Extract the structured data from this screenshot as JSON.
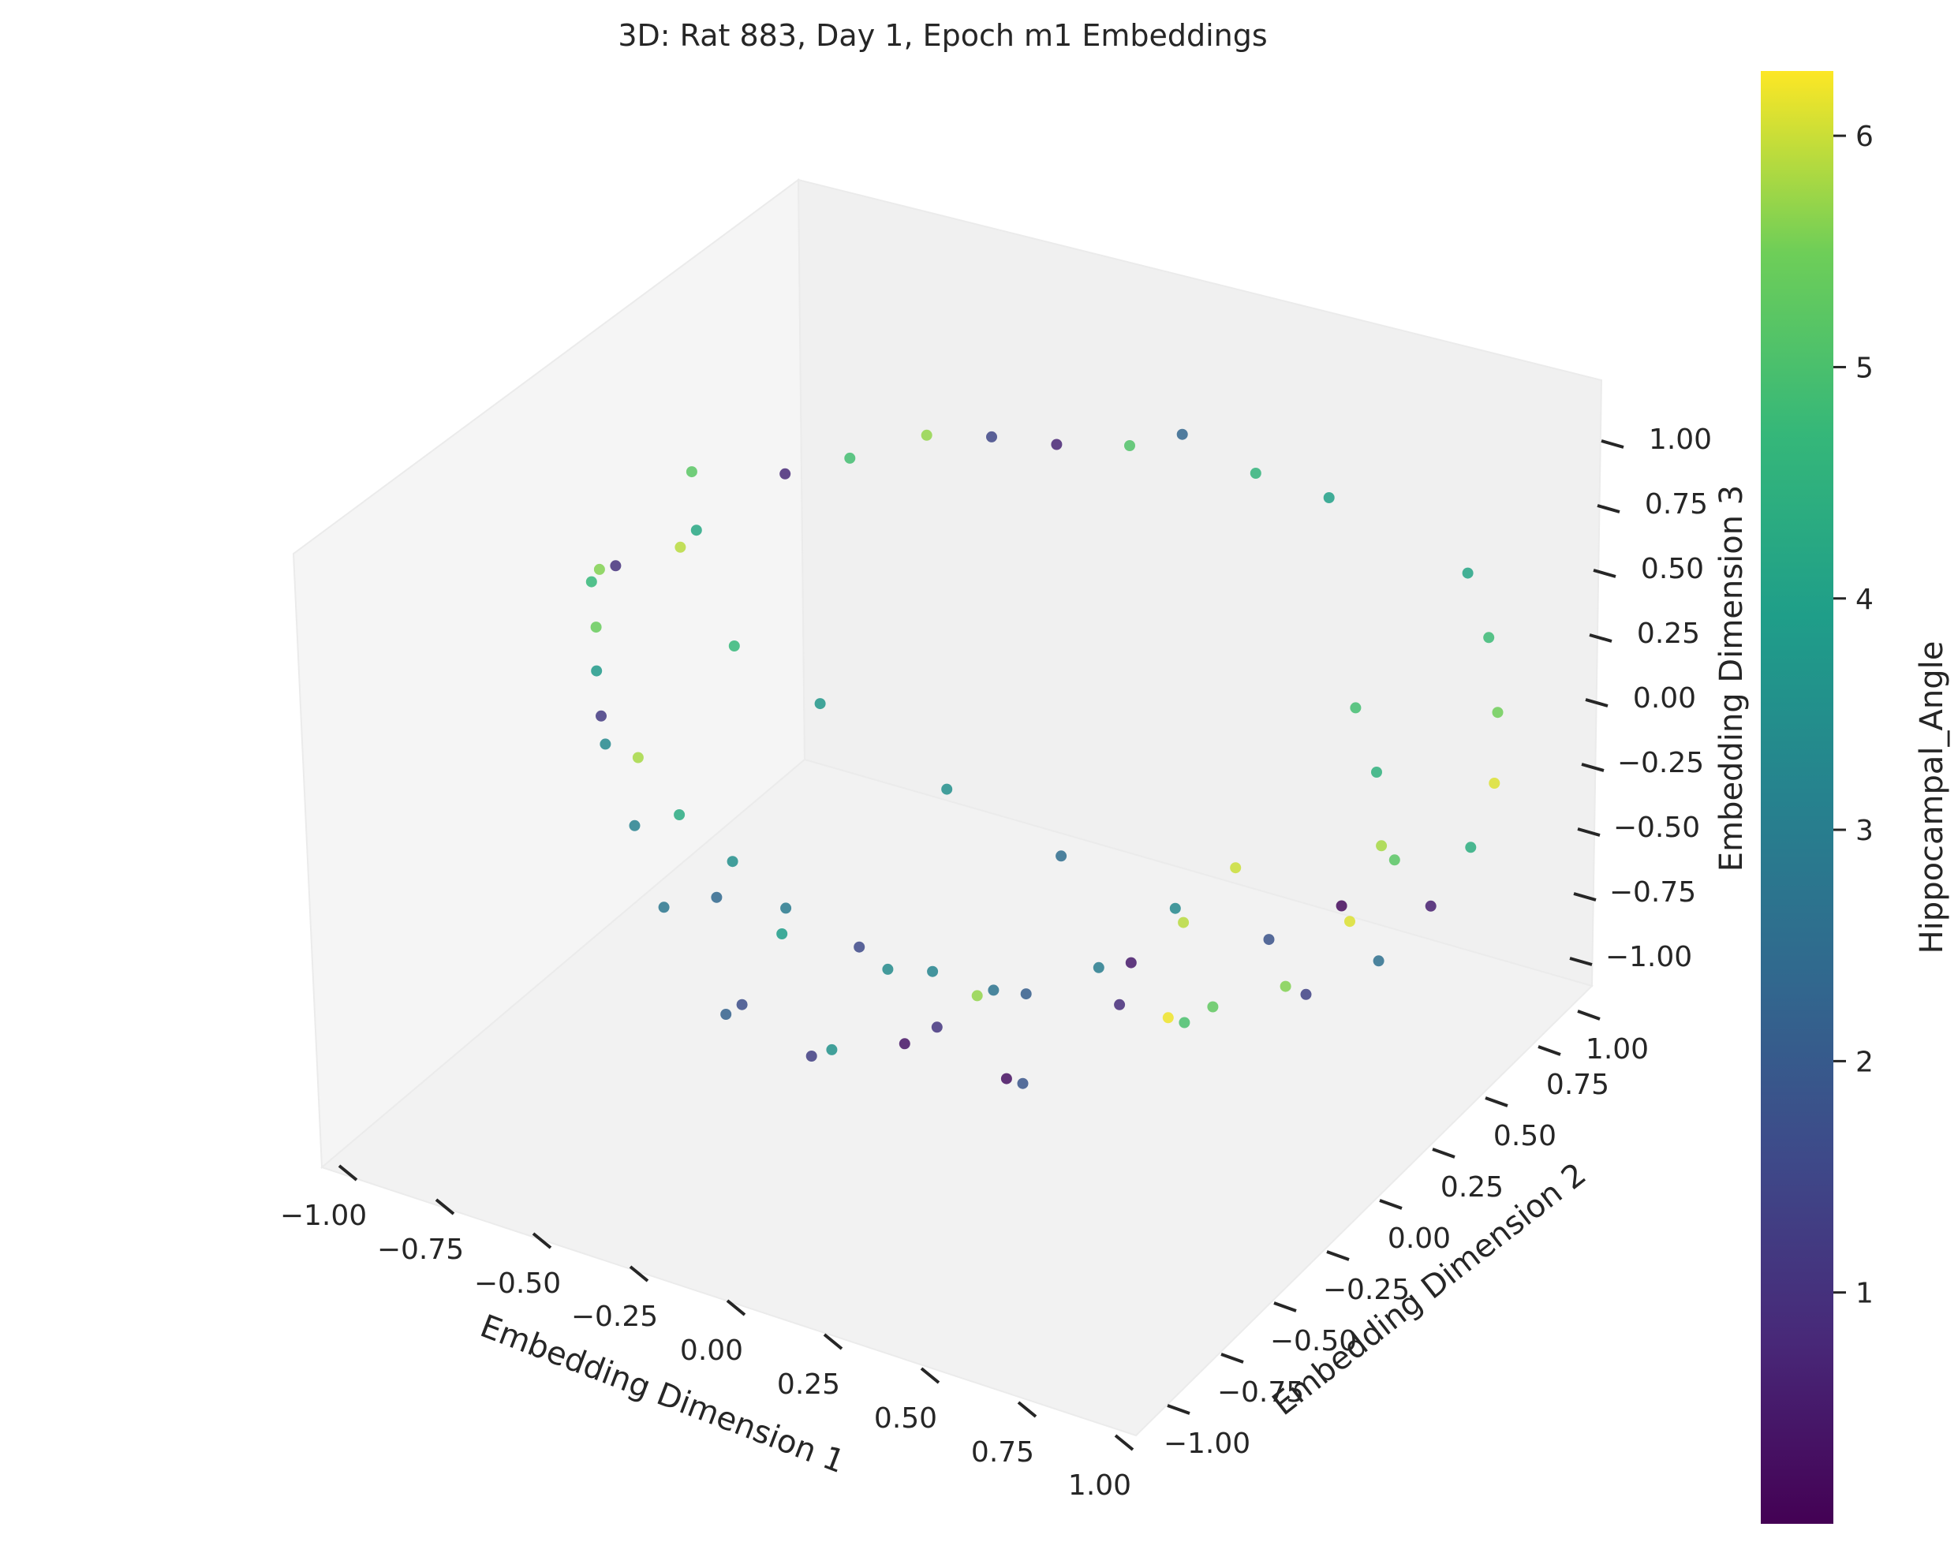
{
  "chart_data": {
    "type": "scatter",
    "projection": "3d",
    "title": "3D: Rat 883, Day 1, Epoch m1 Embeddings",
    "xlabel": "Embedding Dimension 1",
    "ylabel": "Embedding Dimension 2",
    "zlabel": "Embedding Dimension 3",
    "xlim": [
      -1.0,
      1.0
    ],
    "ylim": [
      -1.0,
      1.0
    ],
    "zlim": [
      -1.0,
      1.0
    ],
    "x_ticks": [
      "−1.00",
      "−0.75",
      "−0.50",
      "−0.25",
      "0.00",
      "0.25",
      "0.50",
      "0.75",
      "1.00"
    ],
    "y_ticks": [
      "−1.00",
      "−0.75",
      "−0.50",
      "−0.25",
      "0.00",
      "0.25",
      "0.50",
      "0.75",
      "1.00"
    ],
    "z_ticks": [
      "−1.00",
      "−0.75",
      "−0.50",
      "−0.25",
      "0.00",
      "0.25",
      "0.50",
      "0.75",
      "1.00"
    ],
    "colorbar": {
      "label": "Hippocampal_Angle",
      "colormap": "viridis",
      "range": [
        0.0,
        6.28
      ],
      "ticks": [
        "1",
        "2",
        "3",
        "4",
        "5",
        "6"
      ]
    },
    "grid": true,
    "marker_color_hint": "#21918c",
    "points": [
      [
        -0.8,
        -0.2,
        0.55,
        4.7
      ],
      [
        -0.72,
        -0.3,
        0.7,
        5.6
      ],
      [
        -0.65,
        -0.35,
        0.78,
        1.0
      ],
      [
        -0.55,
        -0.25,
        0.82,
        5.9
      ],
      [
        -0.6,
        -0.1,
        0.75,
        4.2
      ],
      [
        -0.7,
        0.05,
        0.8,
        5.2
      ],
      [
        -0.5,
        0.1,
        0.85,
        0.8
      ],
      [
        -0.4,
        0.2,
        0.88,
        4.9
      ],
      [
        -0.3,
        0.35,
        0.9,
        5.7
      ],
      [
        -0.2,
        0.45,
        0.87,
        1.5
      ],
      [
        -0.1,
        0.55,
        0.82,
        0.7
      ],
      [
        0.05,
        0.6,
        0.85,
        5.1
      ],
      [
        0.15,
        0.65,
        0.9,
        2.3
      ],
      [
        0.3,
        0.7,
        0.8,
        4.6
      ],
      [
        0.45,
        0.75,
        0.75,
        4.0
      ],
      [
        -0.85,
        -0.1,
        0.3,
        5.4
      ],
      [
        -0.88,
        -0.05,
        0.1,
        3.8
      ],
      [
        -0.9,
        0.0,
        -0.1,
        1.2
      ],
      [
        -0.87,
        0.1,
        -0.3,
        5.8
      ],
      [
        -0.8,
        0.15,
        -0.5,
        4.3
      ],
      [
        -0.7,
        0.2,
        -0.65,
        3.5
      ],
      [
        -0.6,
        0.25,
        -0.8,
        2.9
      ],
      [
        -0.45,
        0.3,
        -0.9,
        1.6
      ],
      [
        -0.3,
        0.35,
        -0.95,
        3.2
      ],
      [
        -0.1,
        0.4,
        -0.97,
        2.1
      ],
      [
        0.1,
        0.45,
        -0.95,
        0.9
      ],
      [
        0.3,
        0.5,
        -0.9,
        5.3
      ],
      [
        0.5,
        0.55,
        -0.8,
        1.4
      ],
      [
        0.65,
        0.6,
        -0.65,
        2.6
      ],
      [
        0.75,
        0.65,
        -0.45,
        0.6
      ],
      [
        0.82,
        0.7,
        -0.25,
        4.4
      ],
      [
        0.85,
        0.75,
        -0.05,
        6.1
      ],
      [
        0.83,
        0.8,
        0.15,
        5.5
      ],
      [
        0.78,
        0.85,
        0.35,
        4.8
      ],
      [
        0.7,
        0.9,
        0.5,
        4.1
      ],
      [
        0.6,
        0.1,
        0.0,
        6.0
      ],
      [
        0.5,
        0.05,
        -0.2,
        5.9
      ],
      [
        0.4,
        0.0,
        -0.35,
        0.5
      ],
      [
        0.55,
        -0.1,
        -0.4,
        6.2
      ],
      [
        0.65,
        -0.2,
        -0.3,
        5.0
      ],
      [
        0.2,
        0.2,
        -0.6,
        3.0
      ],
      [
        0.0,
        0.1,
        -0.7,
        2.7
      ],
      [
        -0.2,
        0.0,
        -0.65,
        3.4
      ],
      [
        -0.4,
        -0.1,
        -0.55,
        3.9
      ],
      [
        -0.5,
        -0.2,
        -0.4,
        2.4
      ],
      [
        0.1,
        -0.3,
        -0.5,
        1.1
      ],
      [
        0.3,
        -0.35,
        -0.55,
        0.3
      ],
      [
        -0.1,
        -0.4,
        -0.6,
        3.6
      ],
      [
        -0.3,
        -0.5,
        -0.5,
        2.2
      ],
      [
        0.4,
        -0.45,
        -0.45,
        1.9
      ],
      [
        0.6,
        0.3,
        -0.55,
        5.6
      ],
      [
        0.7,
        0.4,
        -0.35,
        6.1
      ],
      [
        0.72,
        0.5,
        -0.15,
        5.8
      ],
      [
        0.68,
        0.55,
        0.05,
        4.5
      ],
      [
        0.6,
        0.6,
        0.2,
        4.9
      ],
      [
        -0.65,
        -0.4,
        0.2,
        3.3
      ],
      [
        -0.55,
        -0.45,
        0.0,
        3.1
      ],
      [
        -0.45,
        -0.5,
        -0.2,
        2.8
      ],
      [
        -0.2,
        -0.6,
        -0.35,
        1.7
      ],
      [
        0.0,
        -0.65,
        -0.4,
        1.3
      ],
      [
        0.2,
        -0.6,
        -0.3,
        0.4
      ],
      [
        0.35,
        -0.55,
        -0.1,
        5.7
      ],
      [
        -0.75,
        0.3,
        0.0,
        4.7
      ],
      [
        -0.6,
        0.4,
        -0.2,
        3.7
      ],
      [
        -0.35,
        0.5,
        -0.45,
        3.5
      ],
      [
        -0.1,
        0.55,
        -0.6,
        2.5
      ],
      [
        0.15,
        0.6,
        -0.7,
        3.3
      ],
      [
        0.35,
        0.65,
        -0.75,
        1.8
      ],
      [
        0.5,
        0.7,
        -0.6,
        0.2
      ],
      [
        0.62,
        0.72,
        -0.4,
        5.2
      ]
    ]
  }
}
